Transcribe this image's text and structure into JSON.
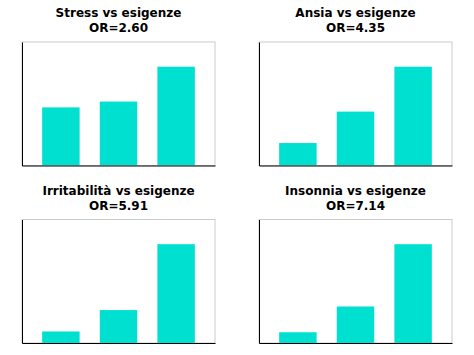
{
  "chart_data": [
    {
      "type": "bar",
      "title": "Stress vs esigenze",
      "subtitle": "OR=2.60",
      "categories": [
        null,
        null,
        null
      ],
      "values": [
        1.0,
        1.1,
        1.7
      ],
      "color": "#00e0d0",
      "ylim": [
        0,
        2.125
      ],
      "tick_labels": false,
      "grid": false
    },
    {
      "type": "bar",
      "title": "Ansia vs esigenze",
      "subtitle": "OR=4.35",
      "categories": [
        null,
        null,
        null
      ],
      "values": [
        0.5,
        1.2,
        2.2
      ],
      "color": "#00e0d0",
      "ylim": [
        0,
        2.75
      ],
      "tick_labels": false,
      "grid": false
    },
    {
      "type": "bar",
      "title": "Irritabilità vs esigenze",
      "subtitle": "OR=5.91",
      "categories": [
        null,
        null,
        null
      ],
      "values": [
        0.35,
        1.0,
        3.0
      ],
      "color": "#00e0d0",
      "ylim": [
        0,
        3.75
      ],
      "tick_labels": false,
      "grid": false
    },
    {
      "type": "bar",
      "title": "Insonnia vs esigenze",
      "subtitle": "OR=7.14",
      "categories": [
        null,
        null,
        null
      ],
      "values": [
        0.25,
        0.85,
        2.3
      ],
      "color": "#00e0d0",
      "ylim": [
        0,
        2.875
      ],
      "tick_labels": false,
      "grid": false
    }
  ]
}
